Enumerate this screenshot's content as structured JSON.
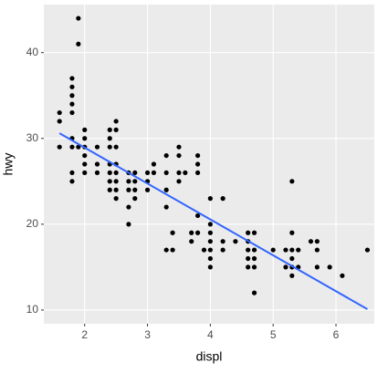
{
  "chart_data": {
    "type": "scatter",
    "x_label": "displ",
    "y_label": "hwy",
    "xlim": [
      1.35,
      6.61
    ],
    "ylim": [
      8.4,
      45.6
    ],
    "xticks": [
      2,
      3,
      4,
      5,
      6
    ],
    "yticks": [
      10,
      20,
      30,
      40
    ],
    "grid": true,
    "series": [
      {
        "color": "#000000",
        "x": [
          1.6,
          1.6,
          1.6,
          1.8,
          1.8,
          1.8,
          1.8,
          1.8,
          1.8,
          1.8,
          1.8,
          1.8,
          1.9,
          1.9,
          1.9,
          2.0,
          2.0,
          2.0,
          2.0,
          2.0,
          2.0,
          2.2,
          2.2,
          2.2,
          2.4,
          2.4,
          2.4,
          2.4,
          2.4,
          2.4,
          2.4,
          2.5,
          2.5,
          2.5,
          2.5,
          2.5,
          2.5,
          2.5,
          2.5,
          2.7,
          2.7,
          2.7,
          2.7,
          2.7,
          2.8,
          2.8,
          2.8,
          2.8,
          3.0,
          3.0,
          3.0,
          3.1,
          3.1,
          3.3,
          3.3,
          3.3,
          3.3,
          3.3,
          3.4,
          3.4,
          3.5,
          3.5,
          3.5,
          3.5,
          3.6,
          3.7,
          3.7,
          3.8,
          3.8,
          3.8,
          3.8,
          3.8,
          3.9,
          4.0,
          4.0,
          4.0,
          4.0,
          4.0,
          4.0,
          4.0,
          4.2,
          4.2,
          4.2,
          4.4,
          4.6,
          4.6,
          4.6,
          4.6,
          4.6,
          4.7,
          4.7,
          4.7,
          4.7,
          4.7,
          5.0,
          5.2,
          5.2,
          5.3,
          5.3,
          5.3,
          5.3,
          5.3,
          5.3,
          5.4,
          5.4,
          5.6,
          5.7,
          5.7,
          5.7,
          5.9,
          6.1,
          6.5
        ],
        "values": [
          33,
          32,
          29,
          37,
          36,
          35,
          34,
          33,
          30,
          29,
          26,
          25,
          44,
          41,
          29,
          31,
          30,
          29,
          28,
          27,
          26,
          29,
          27,
          26,
          31,
          30,
          29,
          27,
          26,
          25,
          24,
          32,
          31,
          29,
          27,
          26,
          25,
          24,
          23,
          26,
          25,
          24,
          22,
          20,
          26,
          25,
          24,
          23,
          26,
          25,
          24,
          27,
          26,
          28,
          26,
          24,
          22,
          17,
          19,
          17,
          29,
          28,
          26,
          25,
          26,
          19,
          18,
          28,
          27,
          26,
          21,
          19,
          17,
          23,
          20,
          19,
          18,
          17,
          16,
          15,
          23,
          18,
          17,
          18,
          19,
          18,
          17,
          16,
          15,
          19,
          17,
          16,
          15,
          12,
          17,
          17,
          15,
          25,
          19,
          17,
          16,
          15,
          14,
          17,
          15,
          18,
          18,
          17,
          15,
          15,
          14,
          17
        ]
      }
    ],
    "trend": {
      "color": "#3366ff",
      "x": [
        1.6,
        6.5
      ],
      "values": [
        30.6,
        10.1
      ]
    }
  }
}
